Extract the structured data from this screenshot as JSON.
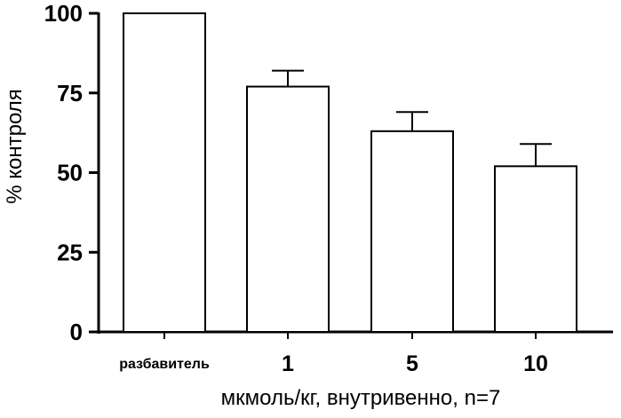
{
  "chart_data": {
    "type": "bar",
    "categories": [
      "разбавитель",
      "1",
      "5",
      "10"
    ],
    "values": [
      100,
      77,
      63,
      52
    ],
    "errors": [
      0,
      5,
      6,
      7
    ],
    "xlabel": "мкмоль/кг, внутривенно, n=7",
    "ylabel": "% контроля",
    "ylim": [
      0,
      100
    ],
    "yticks": [
      0,
      25,
      50,
      75,
      100
    ],
    "grid": false,
    "legend": "none",
    "colors": {
      "bar_fill": "#ffffff",
      "stroke": "#000000"
    }
  }
}
